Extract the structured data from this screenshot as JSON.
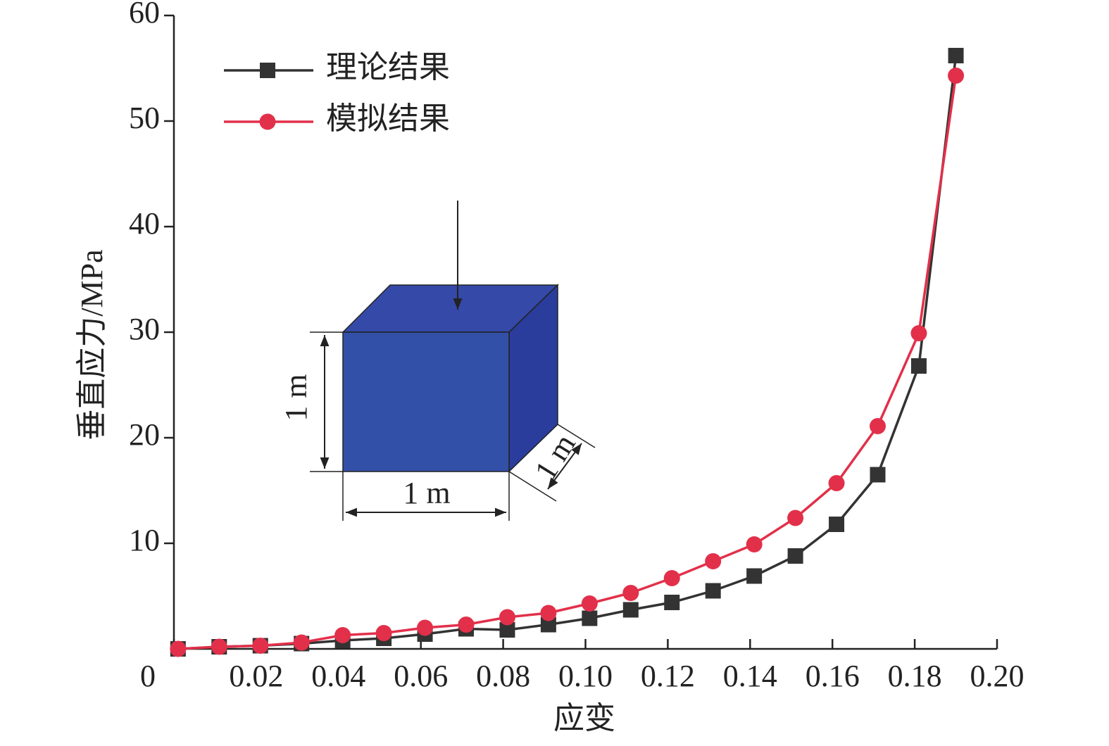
{
  "chart_data": {
    "type": "line",
    "x_label": "应变",
    "y_label": "垂直应力/MPa",
    "x": [
      0.001,
      0.011,
      0.021,
      0.031,
      0.041,
      0.051,
      0.061,
      0.071,
      0.081,
      0.091,
      0.101,
      0.111,
      0.121,
      0.131,
      0.141,
      0.151,
      0.161,
      0.171,
      0.181,
      0.19
    ],
    "series": [
      {
        "name": "理论结果",
        "color": "#333333",
        "marker": "square",
        "values": [
          0,
          0.2,
          0.3,
          0.5,
          0.8,
          1.0,
          1.4,
          1.9,
          1.8,
          2.3,
          2.9,
          3.7,
          4.4,
          5.5,
          6.9,
          8.8,
          11.8,
          16.5,
          26.8,
          56.2
        ]
      },
      {
        "name": "模拟结果",
        "color": "#e2304a",
        "marker": "circle",
        "values": [
          0,
          0.2,
          0.3,
          0.6,
          1.3,
          1.5,
          2.0,
          2.3,
          3.0,
          3.4,
          4.3,
          5.3,
          6.7,
          8.3,
          9.9,
          12.4,
          15.7,
          21.1,
          29.9,
          54.3
        ]
      }
    ],
    "xlim": [
      0,
      0.2
    ],
    "xticks": [
      0,
      0.02,
      0.04,
      0.06,
      0.08,
      {
        "value": 0.1,
        "label": "0.10"
      },
      0.12,
      0.14,
      0.16,
      0.18,
      {
        "value": 0.2,
        "label": "0.20"
      }
    ],
    "ylim": [
      0,
      60
    ],
    "yticks": [
      10,
      20,
      30,
      40,
      50,
      60
    ],
    "legend": "upper left",
    "annotations": [
      "1 m",
      "1 m",
      "1 m"
    ]
  }
}
